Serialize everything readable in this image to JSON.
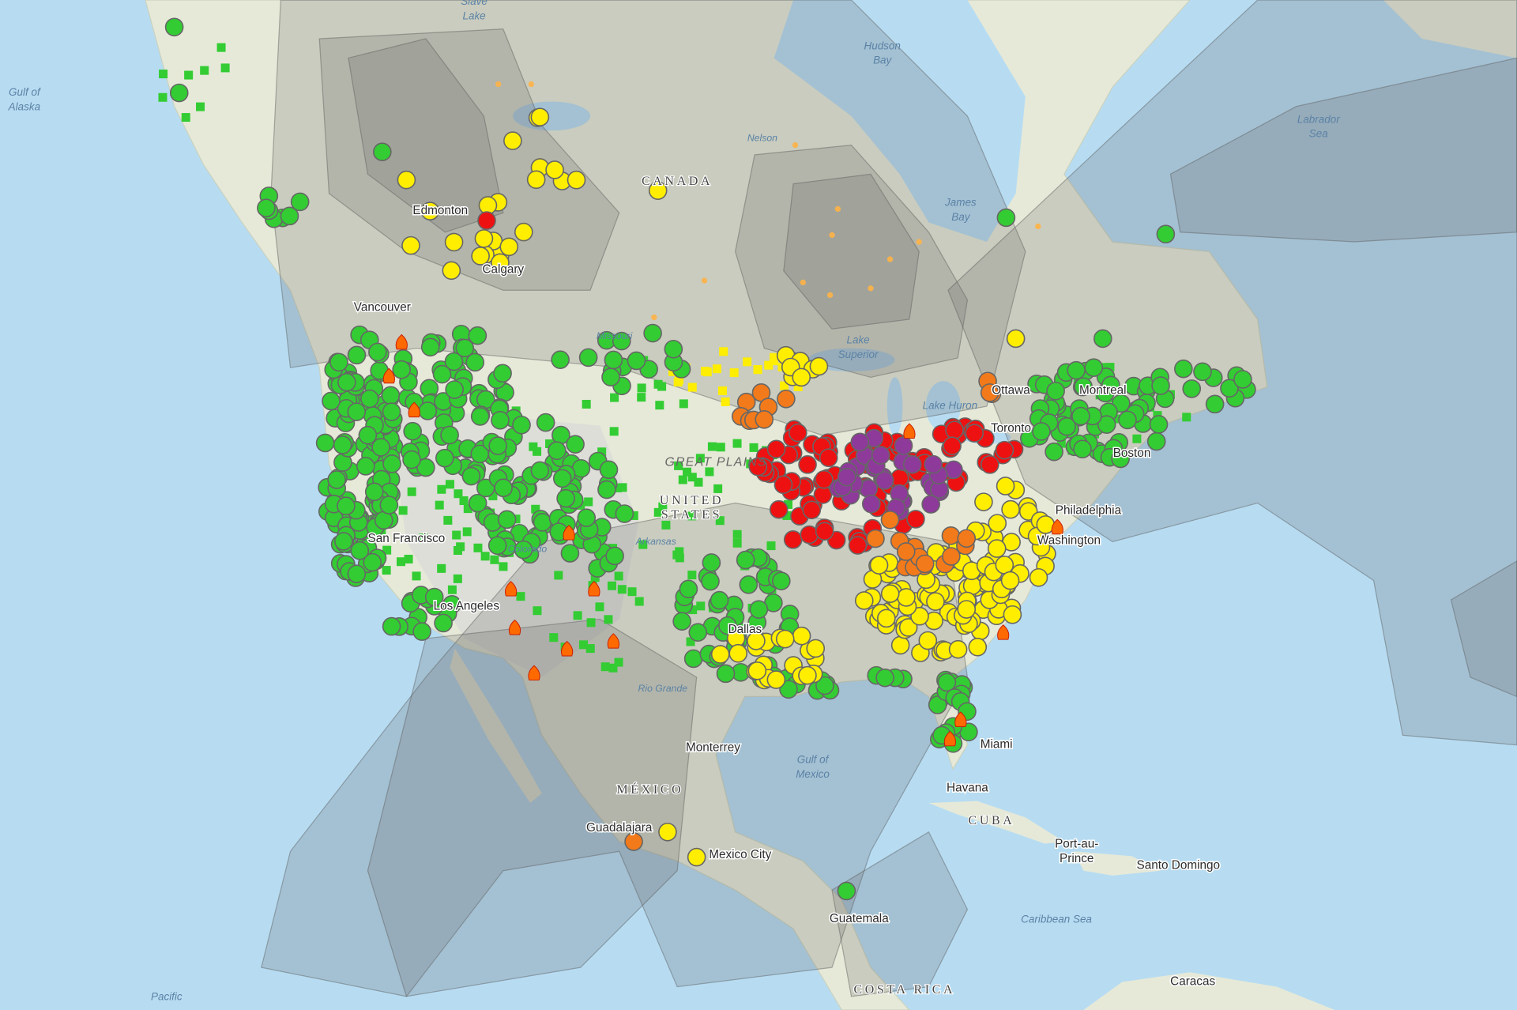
{
  "map": {
    "labels": [
      {
        "lines": [
          "Slave",
          "Lake"
        ]
      },
      {
        "lines": [
          "Hudson",
          "Bay"
        ]
      },
      {
        "lines": [
          "Gulf of",
          "Alaska"
        ]
      },
      {
        "lines": [
          "Labrador",
          "Sea"
        ]
      },
      {
        "text": "CANADA"
      },
      {
        "text": "Nelson"
      },
      {
        "lines": [
          "James",
          "Bay"
        ]
      },
      {
        "text": "Edmonton"
      },
      {
        "text": "Calgary"
      },
      {
        "text": "Vancouver"
      },
      {
        "lines": [
          "Lake",
          "Superior"
        ]
      },
      {
        "text": "Missouri"
      },
      {
        "text": "Ottawa"
      },
      {
        "text": "Montreal"
      },
      {
        "text": "Toronto"
      },
      {
        "text": "Lake Huron"
      },
      {
        "text": "Boston"
      },
      {
        "text": "GREAT PLAINS"
      },
      {
        "lines": [
          "UNITED",
          "STATES"
        ]
      },
      {
        "text": "Philadelphia"
      },
      {
        "text": "Washington"
      },
      {
        "text": "San Francisco"
      },
      {
        "text": "Los Angeles"
      },
      {
        "text": "Dallas"
      },
      {
        "text": "Arkansas"
      },
      {
        "text": "Colorado"
      },
      {
        "text": "Rio Grande"
      },
      {
        "text": "Monterrey"
      },
      {
        "lines": [
          "Gulf of",
          "Mexico"
        ]
      },
      {
        "text": "Miami"
      },
      {
        "text": "Havana"
      },
      {
        "text": "MÉXICO"
      },
      {
        "text": "CUBA"
      },
      {
        "lines": [
          "Port-au-",
          "Prince"
        ]
      },
      {
        "text": "Santo Domingo"
      },
      {
        "text": "Guadalajara"
      },
      {
        "text": "Mexico City"
      },
      {
        "text": "Caribbean Sea"
      },
      {
        "text": "Guatemala"
      },
      {
        "text": "Pacific"
      },
      {
        "text": "COSTA RICA"
      },
      {
        "text": "Caracas"
      }
    ]
  }
}
